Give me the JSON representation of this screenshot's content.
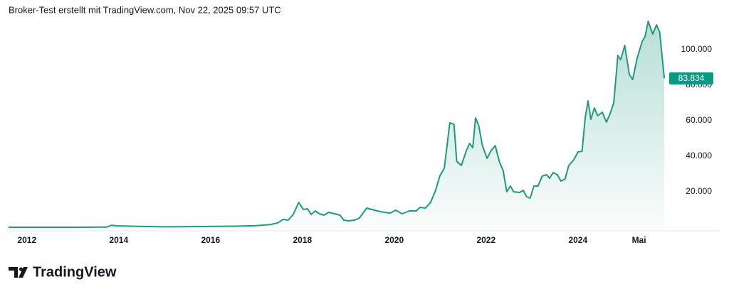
{
  "header": "Broker-Test erstellt mit TradingView.com, Nov 22, 2025 09:57 UTC",
  "brand": "TradingView",
  "chart_data": {
    "type": "area",
    "color": "#1e9a7c",
    "x": [
      2011.6,
      2012,
      2012.96,
      2013.58,
      2013.74,
      2013.84,
      2013.97,
      2014.36,
      2014.98,
      2015.91,
      2016.53,
      2016.99,
      2017.3,
      2017.46,
      2017.58,
      2017.69,
      2017.8,
      2017.92,
      2018.02,
      2018.11,
      2018.19,
      2018.28,
      2018.37,
      2018.47,
      2018.57,
      2018.7,
      2018.82,
      2018.9,
      2019.01,
      2019.13,
      2019.24,
      2019.4,
      2019.63,
      2019.78,
      2019.91,
      2020.03,
      2020.17,
      2020.33,
      2020.48,
      2020.56,
      2020.68,
      2020.79,
      2020.9,
      2020.99,
      2021.09,
      2021.21,
      2021.3,
      2021.36,
      2021.46,
      2021.57,
      2021.64,
      2021.71,
      2021.77,
      2021.84,
      2021.92,
      2022.02,
      2022.11,
      2022.2,
      2022.29,
      2022.37,
      2022.45,
      2022.53,
      2022.6,
      2022.73,
      2022.81,
      2022.88,
      2022.96,
      2023.04,
      2023.13,
      2023.22,
      2023.32,
      2023.38,
      2023.46,
      2023.55,
      2023.63,
      2023.72,
      2023.8,
      2023.91,
      2024.0,
      2024.09,
      2024.16,
      2024.22,
      2024.28,
      2024.36,
      2024.43,
      2024.53,
      2024.62,
      2024.7,
      2024.78,
      2024.87,
      2024.93,
      2025.02,
      2025.12,
      2025.19,
      2025.29,
      2025.4,
      2025.46,
      2025.53,
      2025.63,
      2025.71,
      2025.78,
      2025.88
    ],
    "values": [
      5,
      5,
      13,
      100,
      130,
      1100,
      800,
      550,
      250,
      420,
      600,
      900,
      1500,
      2500,
      4400,
      4000,
      7200,
      14000,
      10000,
      10400,
      7200,
      9200,
      7600,
      6800,
      8400,
      7600,
      6800,
      4000,
      3600,
      4000,
      5200,
      10800,
      9200,
      8400,
      8000,
      9600,
      7600,
      9200,
      9200,
      11200,
      10800,
      14000,
      20800,
      28800,
      33200,
      58800,
      58000,
      37200,
      34800,
      43200,
      47200,
      44800,
      61600,
      57200,
      46000,
      38800,
      43200,
      46000,
      36800,
      32000,
      20000,
      23200,
      20000,
      19600,
      20800,
      17200,
      16400,
      23200,
      23200,
      28800,
      29600,
      27600,
      30800,
      29600,
      26000,
      27200,
      34800,
      38000,
      42400,
      42800,
      62000,
      71200,
      60800,
      67200,
      62800,
      64800,
      59200,
      64000,
      70000,
      96800,
      94400,
      102400,
      86000,
      83200,
      95200,
      104800,
      107200,
      116000,
      108800,
      114000,
      110000,
      83834
    ],
    "price_label": {
      "value": 83834,
      "label": "83.834"
    },
    "xlim": [
      2011.6,
      2026.6
    ],
    "xticks": [
      2012,
      2014,
      2016,
      2018,
      2020,
      2022,
      2024,
      {
        "value": 2025.33,
        "label": "Mai"
      }
    ],
    "ylim": [
      -800,
      118000
    ],
    "yticks": [
      {
        "value": 20000,
        "label": "20.000"
      },
      {
        "value": 40000,
        "label": "40.000"
      },
      {
        "value": 60000,
        "label": "60.000"
      },
      {
        "value": 80000,
        "label": "80.000"
      },
      {
        "value": 100000,
        "label": "100.000"
      }
    ]
  }
}
